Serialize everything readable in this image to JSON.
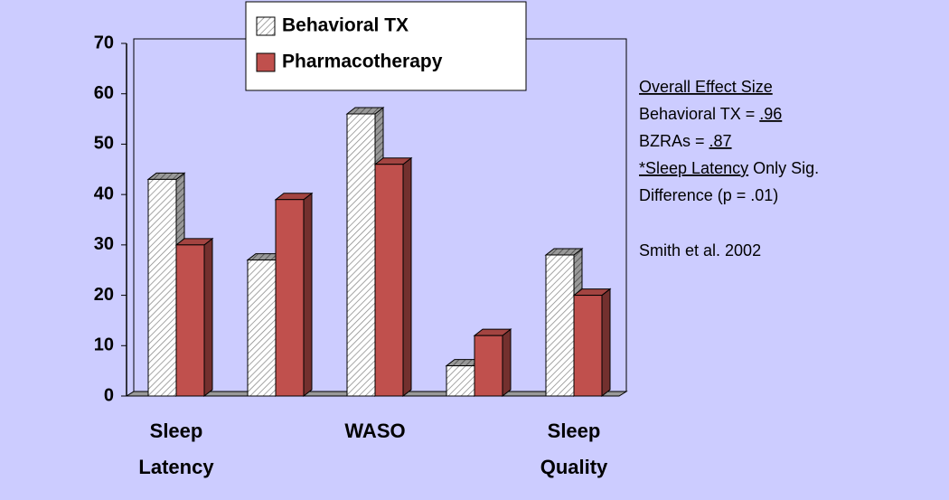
{
  "chart_data": {
    "type": "bar",
    "categories": [
      "Sleep Latency",
      null,
      "WASO",
      null,
      "Sleep Quality"
    ],
    "series": [
      {
        "name": "Behavioral TX",
        "color": "#ffffff",
        "hatch": true,
        "values": [
          43,
          27,
          56,
          6,
          28
        ]
      },
      {
        "name": "Pharmacotherapy",
        "color": "#c0504d",
        "values": [
          30,
          39,
          46,
          12,
          20
        ]
      }
    ],
    "ylim": [
      0,
      70
    ],
    "yticks": [
      0,
      10,
      20,
      30,
      40,
      50,
      60,
      70
    ],
    "legend": "top",
    "annotations": [
      [
        {
          "text": "Overall Effect Size",
          "underline": true
        }
      ],
      [
        {
          "text": "Behavioral TX = "
        },
        {
          "text": ".96",
          "underline": true
        }
      ],
      [
        {
          "text": "BZRAs = "
        },
        {
          "text": ".87",
          "underline": true
        }
      ],
      [
        {
          "text": "*Sleep Latency",
          "underline": true
        },
        {
          "text": " Only Sig."
        }
      ],
      [
        {
          "text": "Difference (p = .01)"
        }
      ]
    ],
    "citation": "Smith et al. 2002"
  }
}
